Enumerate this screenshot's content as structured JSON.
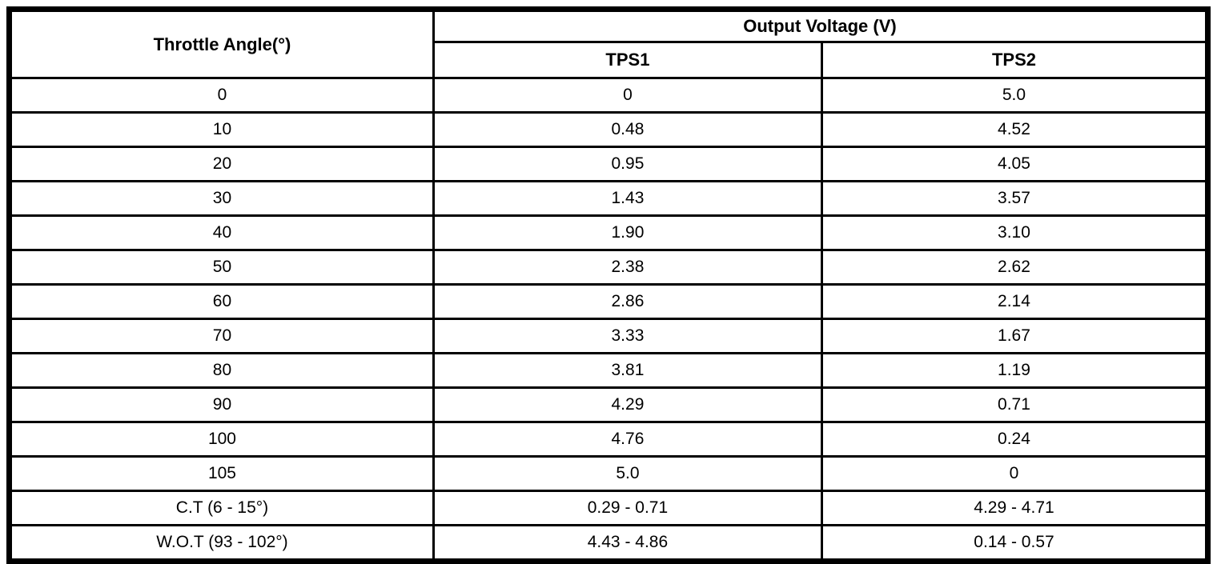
{
  "table": {
    "angle_header": "Throttle Angle(°)",
    "group_header": "Output Voltage (V)",
    "sub_headers": {
      "tps1": "TPS1",
      "tps2": "TPS2"
    },
    "rows": [
      {
        "angle": "0",
        "tps1": "0",
        "tps2": "5.0"
      },
      {
        "angle": "10",
        "tps1": "0.48",
        "tps2": "4.52"
      },
      {
        "angle": "20",
        "tps1": "0.95",
        "tps2": "4.05"
      },
      {
        "angle": "30",
        "tps1": "1.43",
        "tps2": "3.57"
      },
      {
        "angle": "40",
        "tps1": "1.90",
        "tps2": "3.10"
      },
      {
        "angle": "50",
        "tps1": "2.38",
        "tps2": "2.62"
      },
      {
        "angle": "60",
        "tps1": "2.86",
        "tps2": "2.14"
      },
      {
        "angle": "70",
        "tps1": "3.33",
        "tps2": "1.67"
      },
      {
        "angle": "80",
        "tps1": "3.81",
        "tps2": "1.19"
      },
      {
        "angle": "90",
        "tps1": "4.29",
        "tps2": "0.71"
      },
      {
        "angle": "100",
        "tps1": "4.76",
        "tps2": "0.24"
      },
      {
        "angle": "105",
        "tps1": "5.0",
        "tps2": "0"
      },
      {
        "angle": "C.T (6 - 15°)",
        "tps1": "0.29 - 0.71",
        "tps2": "4.29 - 4.71"
      },
      {
        "angle": "W.O.T (93 - 102°)",
        "tps1": "4.43 - 4.86",
        "tps2": "0.14 - 0.57"
      }
    ]
  },
  "colors": {
    "border": "#000000",
    "background": "#ffffff",
    "text": "#000000"
  }
}
